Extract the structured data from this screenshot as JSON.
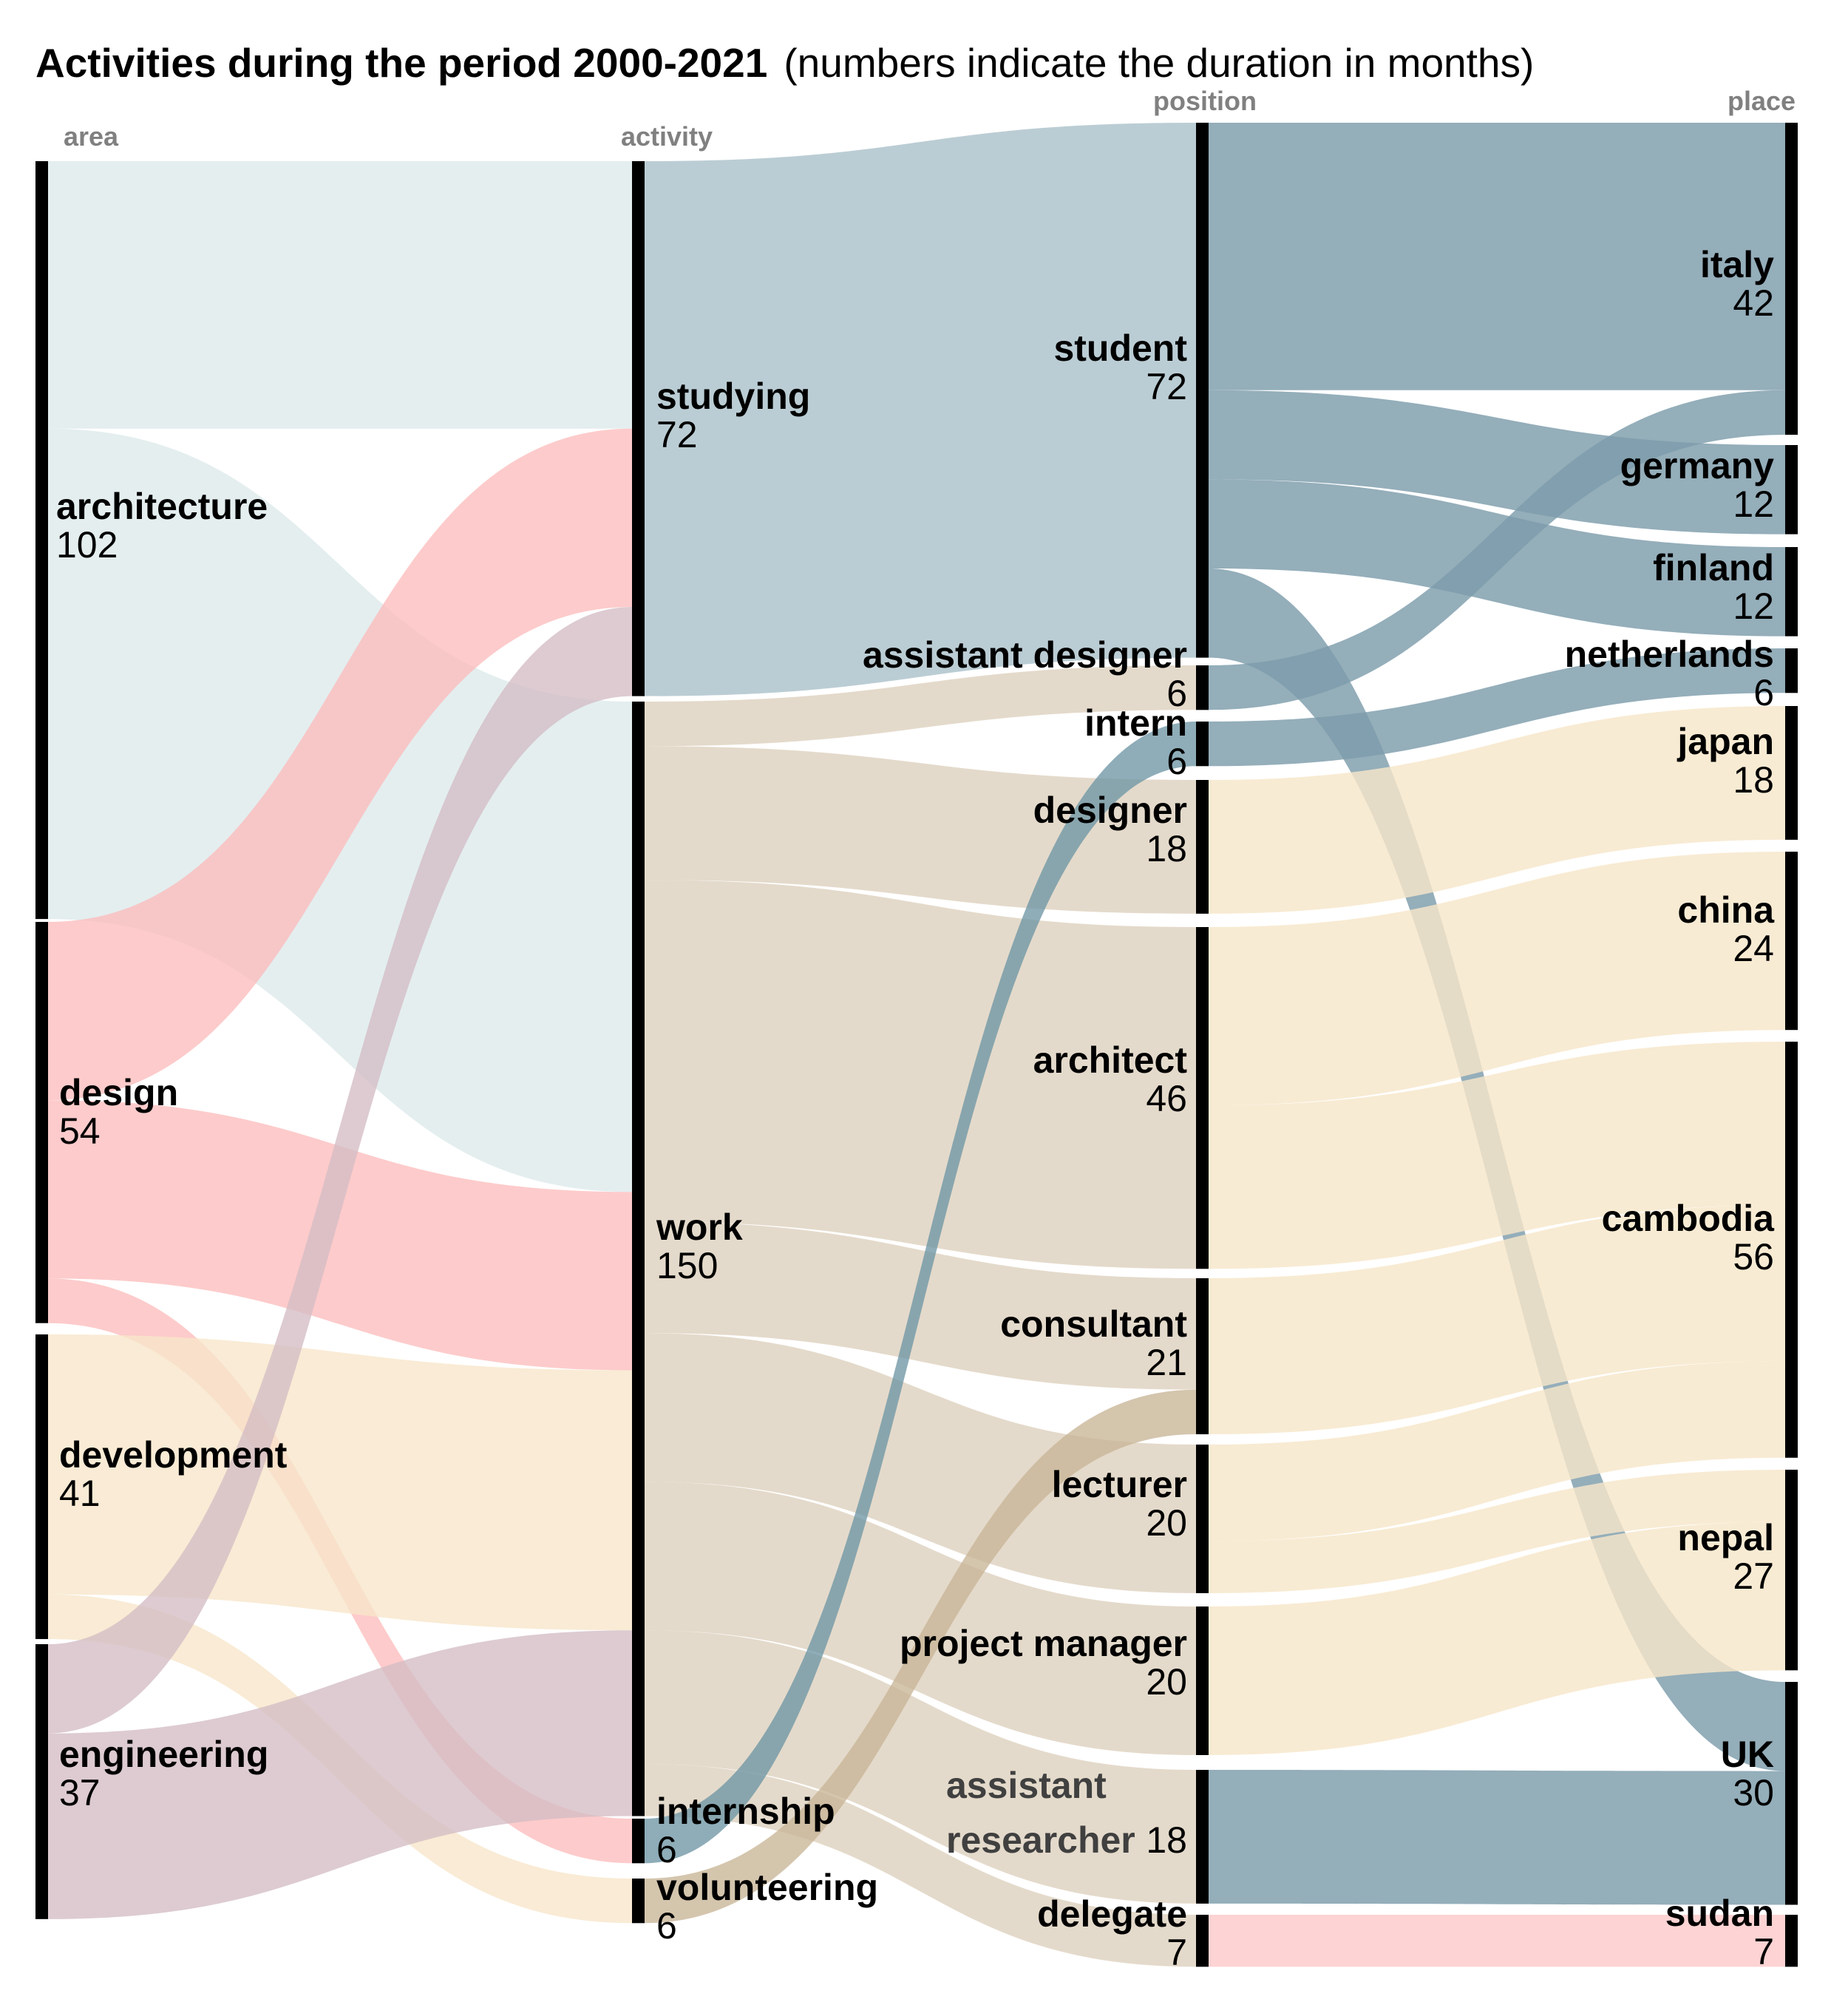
{
  "title": {
    "bold": "Activities during the period 2000-2021",
    "rest": "(numbers indicate the duration in months)"
  },
  "column_labels": {
    "area": "area",
    "activity": "activity",
    "position": "position",
    "place": "place"
  },
  "colors": {
    "architecture": "#dde9eb",
    "design": "#fdbcbc",
    "development": "#f7e6c9",
    "engineering": "#d4bdc4",
    "studying": "#a8bfc8",
    "work": "#ddd0bd",
    "internship": "#6e96a4",
    "volunteering": "#c8b596",
    "student_flow": "#7d9cab",
    "place_asian": "#f7e6c9",
    "sudan": "#fdc9c9",
    "node_bar": "#000000"
  },
  "chart_data": {
    "type": "sankey",
    "title": "Activities during the period 2000-2021 (numbers indicate the duration in months)",
    "columns": [
      "area",
      "activity",
      "position",
      "place"
    ],
    "nodes": {
      "area": [
        {
          "name": "architecture",
          "value": 102
        },
        {
          "name": "design",
          "value": 54
        },
        {
          "name": "development",
          "value": 41
        },
        {
          "name": "engineering",
          "value": 37
        }
      ],
      "activity": [
        {
          "name": "studying",
          "value": 72
        },
        {
          "name": "work",
          "value": 150
        },
        {
          "name": "internship",
          "value": 6
        },
        {
          "name": "volunteering",
          "value": 6
        }
      ],
      "position": [
        {
          "name": "student",
          "value": 72
        },
        {
          "name": "assistant designer",
          "value": 6
        },
        {
          "name": "intern",
          "value": 6
        },
        {
          "name": "designer",
          "value": 18
        },
        {
          "name": "architect",
          "value": 46
        },
        {
          "name": "consultant",
          "value": 21
        },
        {
          "name": "lecturer",
          "value": 20
        },
        {
          "name": "project manager",
          "value": 20
        },
        {
          "name": "assistant researcher",
          "value": 18
        },
        {
          "name": "delegate",
          "value": 7
        }
      ],
      "place": [
        {
          "name": "italy",
          "value": 42
        },
        {
          "name": "germany",
          "value": 12
        },
        {
          "name": "finland",
          "value": 12
        },
        {
          "name": "netherlands",
          "value": 6
        },
        {
          "name": "japan",
          "value": 18
        },
        {
          "name": "china",
          "value": 24
        },
        {
          "name": "cambodia",
          "value": 56
        },
        {
          "name": "nepal",
          "value": 27
        },
        {
          "name": "UK",
          "value": 30
        },
        {
          "name": "sudan",
          "value": 7
        }
      ]
    },
    "links_area_activity": [
      {
        "source": "architecture",
        "target": "studying",
        "value": 36
      },
      {
        "source": "architecture",
        "target": "work",
        "value": 66
      },
      {
        "source": "design",
        "target": "studying",
        "value": 24
      },
      {
        "source": "design",
        "target": "work",
        "value": 24
      },
      {
        "source": "design",
        "target": "internship",
        "value": 6
      },
      {
        "source": "development",
        "target": "work",
        "value": 35
      },
      {
        "source": "development",
        "target": "volunteering",
        "value": 6
      },
      {
        "source": "engineering",
        "target": "studying",
        "value": 12
      },
      {
        "source": "engineering",
        "target": "work",
        "value": 25
      }
    ],
    "links_activity_position": [
      {
        "source": "studying",
        "target": "student",
        "value": 72
      },
      {
        "source": "work",
        "target": "assistant designer",
        "value": 6
      },
      {
        "source": "work",
        "target": "designer",
        "value": 18
      },
      {
        "source": "work",
        "target": "architect",
        "value": 46
      },
      {
        "source": "work",
        "target": "consultant",
        "value": 15
      },
      {
        "source": "work",
        "target": "lecturer",
        "value": 20
      },
      {
        "source": "work",
        "target": "project manager",
        "value": 20
      },
      {
        "source": "work",
        "target": "assistant researcher",
        "value": 18
      },
      {
        "source": "work",
        "target": "delegate",
        "value": 7
      },
      {
        "source": "internship",
        "target": "intern",
        "value": 6
      },
      {
        "source": "volunteering",
        "target": "consultant",
        "value": 6
      }
    ],
    "links_position_place": [
      {
        "source": "student",
        "target": "italy",
        "value": 36
      },
      {
        "source": "student",
        "target": "germany",
        "value": 12
      },
      {
        "source": "student",
        "target": "finland",
        "value": 12
      },
      {
        "source": "student",
        "target": "UK",
        "value": 12
      },
      {
        "source": "assistant designer",
        "target": "italy",
        "value": 6
      },
      {
        "source": "intern",
        "target": "netherlands",
        "value": 6
      },
      {
        "source": "designer",
        "target": "japan",
        "value": 18
      },
      {
        "source": "architect",
        "target": "china",
        "value": 24
      },
      {
        "source": "architect",
        "target": "cambodia",
        "value": 22
      },
      {
        "source": "consultant",
        "target": "cambodia",
        "value": 21
      },
      {
        "source": "lecturer",
        "target": "cambodia",
        "value": 13
      },
      {
        "source": "lecturer",
        "target": "nepal",
        "value": 7
      },
      {
        "source": "project manager",
        "target": "nepal",
        "value": 20
      },
      {
        "source": "assistant researcher",
        "target": "UK",
        "value": 18
      },
      {
        "source": "delegate",
        "target": "sudan",
        "value": 7
      }
    ]
  }
}
